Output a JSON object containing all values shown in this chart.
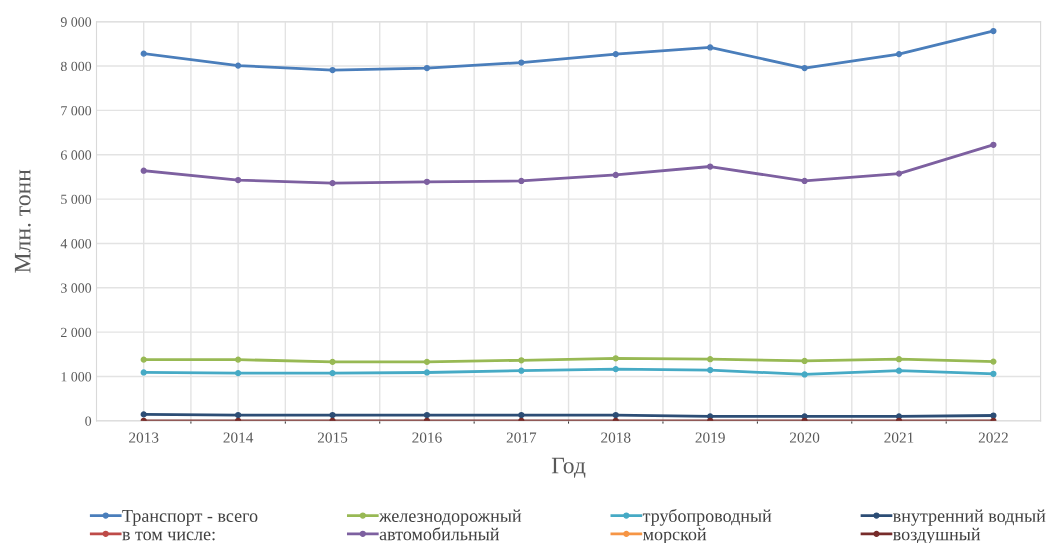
{
  "chart_data": {
    "type": "line",
    "xlabel": "Год",
    "ylabel": "Млн. тонн",
    "categories": [
      "2013",
      "2014",
      "2015",
      "2016",
      "2017",
      "2018",
      "2019",
      "2020",
      "2021",
      "2022"
    ],
    "ylim": [
      0,
      9000
    ],
    "yticks": [
      0,
      {
        "value": 1000,
        "label": "1 000"
      },
      {
        "value": 2000,
        "label": "2 000"
      },
      {
        "value": 3000,
        "label": "3 000"
      },
      {
        "value": 4000,
        "label": "4 000"
      },
      {
        "value": 5000,
        "label": "5 000"
      },
      {
        "value": 6000,
        "label": "6 000"
      },
      {
        "value": 7000,
        "label": "7 000"
      },
      {
        "value": 8000,
        "label": "8 000"
      },
      {
        "value": 9000,
        "label": "9 000"
      }
    ],
    "grid": true,
    "legend": "bottom",
    "marker": "circle",
    "line_style": "solid",
    "series": [
      {
        "name": "Транспорт - всего",
        "color": "#4a7ebb",
        "values": [
          8280,
          8010,
          7910,
          7955,
          8080,
          8270,
          8420,
          7955,
          8270,
          8790
        ]
      },
      {
        "name": "в том числе:",
        "color": "#be4b48",
        "values": [
          null,
          null,
          null,
          null,
          null,
          null,
          null,
          null,
          null,
          null
        ]
      },
      {
        "name": "железнодорожный",
        "color": "#98b954",
        "values": [
          1380,
          1380,
          1330,
          1330,
          1365,
          1410,
          1390,
          1350,
          1390,
          1335
        ]
      },
      {
        "name": "автомобильный",
        "color": "#7d60a0",
        "values": [
          5640,
          5430,
          5360,
          5390,
          5410,
          5545,
          5735,
          5410,
          5575,
          6225
        ]
      },
      {
        "name": "трубопроводный",
        "color": "#46aac5",
        "values": [
          1090,
          1075,
          1075,
          1090,
          1130,
          1165,
          1145,
          1045,
          1130,
          1060
        ]
      },
      {
        "name": "морской",
        "color": "#f69545",
        "values": [
          null,
          null,
          null,
          null,
          null,
          null,
          null,
          null,
          null,
          null
        ]
      },
      {
        "name": "внутренний водный",
        "color": "#2c4d75",
        "values": [
          145,
          130,
          130,
          130,
          130,
          130,
          100,
          100,
          100,
          120
        ]
      },
      {
        "name": "воздушный",
        "color": "#772c2a",
        "values": [
          1,
          1,
          1,
          1,
          1,
          1,
          1,
          1,
          1,
          1
        ]
      }
    ]
  }
}
